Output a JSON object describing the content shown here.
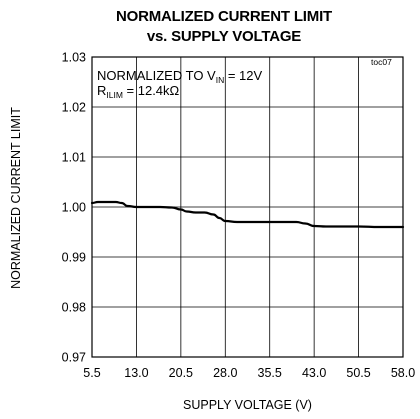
{
  "chart_data": {
    "type": "line",
    "title_line1": "NORMALIZED CURRENT LIMIT",
    "title_line2": "vs. SUPPLY VOLTAGE",
    "figure_tag": "toc07",
    "annotation": {
      "line1_prefix": "NORMALIZED TO V",
      "line1_sub": "IN",
      "line1_suffix": " = 12V",
      "line2_prefix": "R",
      "line2_sub": "ILIM",
      "line2_suffix": " = 12.4kΩ"
    },
    "xlabel": "SUPPLY VOLTAGE (V)",
    "ylabel": "NORMALIZED CURRENT LIMIT",
    "xlim": [
      5.5,
      58.0
    ],
    "ylim": [
      0.97,
      1.03
    ],
    "x_ticks": [
      "5.5",
      "13.0",
      "20.5",
      "28.0",
      "35.5",
      "43.0",
      "50.5",
      "58.0"
    ],
    "y_ticks": [
      "0.97",
      "0.98",
      "0.99",
      "1.00",
      "1.01",
      "1.02",
      "1.03"
    ],
    "grid": true,
    "series": [
      {
        "color": "#000000",
        "x": [
          5.5,
          6.5,
          8.0,
          9.5,
          10.5,
          11.5,
          13.0,
          15.0,
          17.0,
          19.0,
          20.5,
          21.5,
          23.0,
          24.5,
          26.0,
          27.0,
          28.0,
          30.0,
          32.0,
          35.5,
          38.0,
          40.0,
          41.5,
          43.0,
          45.0,
          47.0,
          50.5,
          54.0,
          58.0
        ],
        "y": [
          1.0008,
          1.001,
          1.001,
          1.001,
          1.0008,
          1.0002,
          1.0,
          1.0,
          1.0,
          0.9999,
          0.9995,
          0.9991,
          0.9989,
          0.9989,
          0.9985,
          0.9978,
          0.9972,
          0.997,
          0.997,
          0.997,
          0.997,
          0.997,
          0.9967,
          0.9962,
          0.9961,
          0.9961,
          0.9961,
          0.996,
          0.996
        ]
      }
    ]
  }
}
